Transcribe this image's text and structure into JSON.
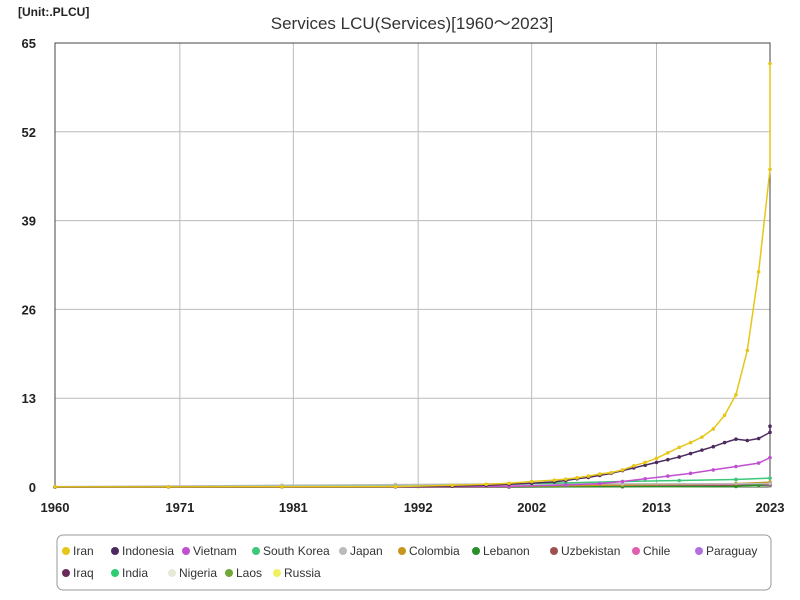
{
  "chart_data": {
    "type": "line",
    "unit_label": "[Unit:.PLCU]",
    "title": "Services LCU(Services)[1960～2023]",
    "xlabel": "",
    "ylabel": "",
    "xlim": [
      1960,
      2023
    ],
    "ylim": [
      0,
      65
    ],
    "x_ticks": [
      "1960",
      "1971",
      "1981",
      "1992",
      "2002",
      "2013",
      "2023"
    ],
    "y_ticks": [
      "0",
      "13",
      "26",
      "39",
      "52",
      "65"
    ],
    "grid": true,
    "legend_position": "bottom",
    "series": [
      {
        "name": "Iran",
        "color": "#e6c619",
        "points": [
          [
            1960,
            0.01
          ],
          [
            1970,
            0.02
          ],
          [
            1980,
            0.03
          ],
          [
            1990,
            0.06
          ],
          [
            1995,
            0.25
          ],
          [
            1998,
            0.4
          ],
          [
            2000,
            0.55
          ],
          [
            2002,
            0.8
          ],
          [
            2004,
            1.0
          ],
          [
            2005,
            1.15
          ],
          [
            2006,
            1.35
          ],
          [
            2007,
            1.6
          ],
          [
            2008,
            1.9
          ],
          [
            2009,
            2.1
          ],
          [
            2010,
            2.5
          ],
          [
            2011,
            3.1
          ],
          [
            2012,
            3.6
          ],
          [
            2013,
            4.2
          ],
          [
            2014,
            5.0
          ],
          [
            2015,
            5.8
          ],
          [
            2016,
            6.5
          ],
          [
            2017,
            7.3
          ],
          [
            2018,
            8.5
          ],
          [
            2019,
            10.5
          ],
          [
            2020,
            13.5
          ],
          [
            2021,
            20.0
          ],
          [
            2022,
            31.5
          ],
          [
            2023,
            46.5
          ],
          [
            2024,
            62.0
          ]
        ]
      },
      {
        "name": "Indonesia",
        "color": "#4b2b5e",
        "points": [
          [
            1960,
            0.0
          ],
          [
            1970,
            0.0
          ],
          [
            1980,
            0.01
          ],
          [
            1990,
            0.05
          ],
          [
            1995,
            0.12
          ],
          [
            1998,
            0.25
          ],
          [
            2000,
            0.4
          ],
          [
            2002,
            0.55
          ],
          [
            2004,
            0.75
          ],
          [
            2005,
            0.95
          ],
          [
            2006,
            1.2
          ],
          [
            2007,
            1.4
          ],
          [
            2008,
            1.7
          ],
          [
            2009,
            2.0
          ],
          [
            2010,
            2.4
          ],
          [
            2011,
            2.8
          ],
          [
            2012,
            3.2
          ],
          [
            2013,
            3.6
          ],
          [
            2014,
            4.0
          ],
          [
            2015,
            4.4
          ],
          [
            2016,
            4.9
          ],
          [
            2017,
            5.4
          ],
          [
            2018,
            5.9
          ],
          [
            2019,
            6.5
          ],
          [
            2020,
            7.0
          ],
          [
            2021,
            6.8
          ],
          [
            2022,
            7.1
          ],
          [
            2023,
            8.0
          ],
          [
            2024,
            8.9
          ]
        ]
      },
      {
        "name": "Vietnam",
        "color": "#c050d0",
        "points": [
          [
            1960,
            0.0
          ],
          [
            1990,
            0.01
          ],
          [
            2000,
            0.1
          ],
          [
            2005,
            0.3
          ],
          [
            2008,
            0.5
          ],
          [
            2010,
            0.8
          ],
          [
            2012,
            1.2
          ],
          [
            2014,
            1.6
          ],
          [
            2016,
            2.0
          ],
          [
            2018,
            2.5
          ],
          [
            2020,
            3.0
          ],
          [
            2022,
            3.5
          ],
          [
            2024,
            4.3
          ]
        ]
      },
      {
        "name": "South Korea",
        "color": "#3cc878",
        "points": [
          [
            1960,
            0.0
          ],
          [
            1990,
            0.1
          ],
          [
            2000,
            0.4
          ],
          [
            2005,
            0.6
          ],
          [
            2010,
            0.8
          ],
          [
            2015,
            0.95
          ],
          [
            2020,
            1.1
          ],
          [
            2024,
            1.3
          ]
        ]
      },
      {
        "name": "Japan",
        "color": "#bbbbbb",
        "points": [
          [
            1960,
            0.05
          ],
          [
            1980,
            0.25
          ],
          [
            1990,
            0.35
          ],
          [
            2000,
            0.45
          ],
          [
            2010,
            0.45
          ],
          [
            2024,
            0.5
          ]
        ]
      },
      {
        "name": "Colombia",
        "color": "#c8961e",
        "points": [
          [
            1960,
            0.0
          ],
          [
            1990,
            0.02
          ],
          [
            2000,
            0.1
          ],
          [
            2010,
            0.3
          ],
          [
            2020,
            0.5
          ],
          [
            2024,
            0.7
          ]
        ]
      },
      {
        "name": "Lebanon",
        "color": "#2a8f2a",
        "points": [
          [
            1960,
            0.0
          ],
          [
            2000,
            0.02
          ],
          [
            2010,
            0.05
          ],
          [
            2020,
            0.1
          ],
          [
            2022,
            0.3
          ],
          [
            2024,
            0.6
          ]
        ]
      },
      {
        "name": "Uzbekistan",
        "color": "#9e5050",
        "points": [
          [
            1960,
            0.0
          ],
          [
            2000,
            0.01
          ],
          [
            2010,
            0.05
          ],
          [
            2020,
            0.2
          ],
          [
            2024,
            0.4
          ]
        ]
      },
      {
        "name": "Chile",
        "color": "#e060b0",
        "points": [
          [
            1960,
            0.0
          ],
          [
            1990,
            0.05
          ],
          [
            2000,
            0.15
          ],
          [
            2010,
            0.25
          ],
          [
            2020,
            0.35
          ],
          [
            2024,
            0.4
          ]
        ]
      },
      {
        "name": "Paraguay",
        "color": "#b070e0",
        "points": [
          [
            1960,
            0.0
          ],
          [
            1990,
            0.02
          ],
          [
            2000,
            0.08
          ],
          [
            2010,
            0.2
          ],
          [
            2020,
            0.3
          ],
          [
            2024,
            0.35
          ]
        ]
      },
      {
        "name": "Iraq",
        "color": "#6a2a5a",
        "points": [
          [
            1960,
            0.0
          ],
          [
            2000,
            0.01
          ],
          [
            2010,
            0.1
          ],
          [
            2020,
            0.25
          ],
          [
            2024,
            0.3
          ]
        ]
      },
      {
        "name": "India",
        "color": "#2ecc71",
        "points": [
          [
            1960,
            0.0
          ],
          [
            1990,
            0.02
          ],
          [
            2000,
            0.05
          ],
          [
            2010,
            0.12
          ],
          [
            2020,
            0.2
          ],
          [
            2024,
            0.25
          ]
        ]
      },
      {
        "name": "Nigeria",
        "color": "#e8e8d8",
        "points": [
          [
            1960,
            0.0
          ],
          [
            2000,
            0.01
          ],
          [
            2010,
            0.05
          ],
          [
            2020,
            0.12
          ],
          [
            2024,
            0.2
          ]
        ]
      },
      {
        "name": "Laos",
        "color": "#70a838",
        "points": [
          [
            1960,
            0.0
          ],
          [
            2000,
            0.01
          ],
          [
            2010,
            0.03
          ],
          [
            2020,
            0.08
          ],
          [
            2024,
            0.15
          ]
        ]
      },
      {
        "name": "Russia",
        "color": "#f0f060",
        "points": [
          [
            1960,
            0.0
          ],
          [
            1992,
            0.0
          ],
          [
            2000,
            0.05
          ],
          [
            2010,
            0.2
          ],
          [
            2020,
            0.35
          ],
          [
            2024,
            0.45
          ]
        ]
      }
    ]
  }
}
